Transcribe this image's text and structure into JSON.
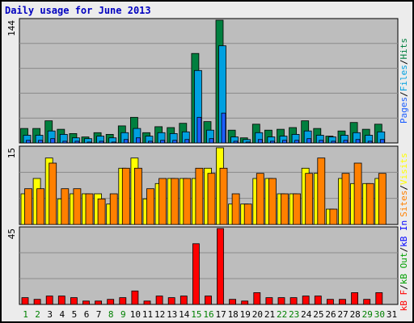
{
  "title": "Daily usage for June 2013",
  "colors": {
    "hits": "#007f3f",
    "files": "#00a0e0",
    "pages": "#1b5dff",
    "visits": "#ffff00",
    "sites": "#ff8000",
    "kbin": "#0000ff",
    "kbout": "#00a000",
    "kbf": "#ff0000",
    "panel_bg": "#bdbdbd",
    "weekend_label": "#008000",
    "weekday_label": "#000000"
  },
  "side_labels": {
    "top": [
      {
        "text": "Pages",
        "color_key": "pages"
      },
      {
        "text": "/",
        "color_key": "black"
      },
      {
        "text": "Files",
        "color_key": "files"
      },
      {
        "text": "/",
        "color_key": "black"
      },
      {
        "text": "Hits",
        "color_key": "hits"
      }
    ],
    "mid": [
      {
        "text": "Sites",
        "color_key": "sites"
      },
      {
        "text": "/",
        "color_key": "black"
      },
      {
        "text": "Visits",
        "color_key": "visits"
      }
    ],
    "bot": [
      {
        "text": "kB F",
        "color_key": "kbf"
      },
      {
        "text": "/",
        "color_key": "black"
      },
      {
        "text": "kB Out",
        "color_key": "kbout"
      },
      {
        "text": "/",
        "color_key": "black"
      },
      {
        "text": "kB In",
        "color_key": "kbin"
      }
    ]
  },
  "chart_data": [
    {
      "type": "bar",
      "panel": "hits-files-pages",
      "ymax_label": "144",
      "ylim": [
        0,
        144
      ],
      "grid": true,
      "categories": [
        "1",
        "2",
        "3",
        "4",
        "5",
        "6",
        "7",
        "8",
        "9",
        "10",
        "11",
        "12",
        "13",
        "14",
        "15",
        "16",
        "17",
        "18",
        "19",
        "20",
        "21",
        "22",
        "23",
        "24",
        "25",
        "26",
        "27",
        "28",
        "29",
        "30",
        "31"
      ],
      "weekend_days": [
        "1",
        "2",
        "8",
        "9",
        "15",
        "16",
        "22",
        "23",
        "29",
        "30"
      ],
      "series": [
        {
          "name": "Hits",
          "values": [
            17,
            17,
            26,
            16,
            11,
            7,
            12,
            10,
            20,
            30,
            12,
            19,
            18,
            23,
            105,
            25,
            144,
            15,
            6,
            22,
            15,
            16,
            18,
            26,
            17,
            8,
            14,
            24,
            16,
            22,
            0
          ]
        },
        {
          "name": "Files",
          "values": [
            9,
            9,
            14,
            10,
            6,
            5,
            8,
            6,
            12,
            17,
            8,
            12,
            11,
            13,
            85,
            15,
            114,
            7,
            4,
            12,
            7,
            8,
            10,
            14,
            9,
            7,
            9,
            12,
            9,
            13,
            0
          ]
        },
        {
          "name": "Pages",
          "values": [
            3,
            3,
            5,
            2,
            2,
            1,
            2,
            1,
            4,
            6,
            2,
            3,
            3,
            4,
            30,
            5,
            35,
            2,
            1,
            4,
            2,
            3,
            3,
            5,
            3,
            2,
            3,
            4,
            2,
            4,
            0
          ]
        }
      ]
    },
    {
      "type": "bar",
      "panel": "visits-sites",
      "ymax_label": "15",
      "ylim": [
        0,
        15
      ],
      "grid": true,
      "categories": [
        "1",
        "2",
        "3",
        "4",
        "5",
        "6",
        "7",
        "8",
        "9",
        "10",
        "11",
        "12",
        "13",
        "14",
        "15",
        "16",
        "17",
        "18",
        "19",
        "20",
        "21",
        "22",
        "23",
        "24",
        "25",
        "26",
        "27",
        "28",
        "29",
        "30",
        "31"
      ],
      "series": [
        {
          "name": "Visits",
          "values": [
            6,
            9,
            13,
            5,
            6,
            6,
            6,
            4,
            11,
            13,
            5,
            8,
            9,
            9,
            9,
            11,
            15,
            4,
            4,
            9,
            9,
            6,
            6,
            11,
            10,
            3,
            9,
            8,
            8,
            9,
            0
          ]
        },
        {
          "name": "Sites",
          "values": [
            7,
            7,
            12,
            7,
            7,
            6,
            5,
            6,
            11,
            11,
            7,
            9,
            9,
            9,
            11,
            10,
            11,
            6,
            4,
            10,
            9,
            6,
            6,
            10,
            13,
            3,
            10,
            12,
            8,
            10,
            0
          ]
        }
      ]
    },
    {
      "type": "bar",
      "panel": "kb",
      "ymax_label": "45",
      "ylim": [
        0,
        45
      ],
      "grid": true,
      "categories": [
        "1",
        "2",
        "3",
        "4",
        "5",
        "6",
        "7",
        "8",
        "9",
        "10",
        "11",
        "12",
        "13",
        "14",
        "15",
        "16",
        "17",
        "18",
        "19",
        "20",
        "21",
        "22",
        "23",
        "24",
        "25",
        "26",
        "27",
        "28",
        "29",
        "30",
        "31"
      ],
      "series": [
        {
          "name": "kB F",
          "values": [
            4,
            3,
            5,
            5,
            4,
            2,
            2,
            3,
            4,
            8,
            2,
            5,
            4,
            5,
            36,
            5,
            45,
            3,
            2,
            7,
            4,
            4,
            4,
            5,
            5,
            3,
            3,
            7,
            3,
            7,
            0
          ]
        }
      ]
    }
  ]
}
